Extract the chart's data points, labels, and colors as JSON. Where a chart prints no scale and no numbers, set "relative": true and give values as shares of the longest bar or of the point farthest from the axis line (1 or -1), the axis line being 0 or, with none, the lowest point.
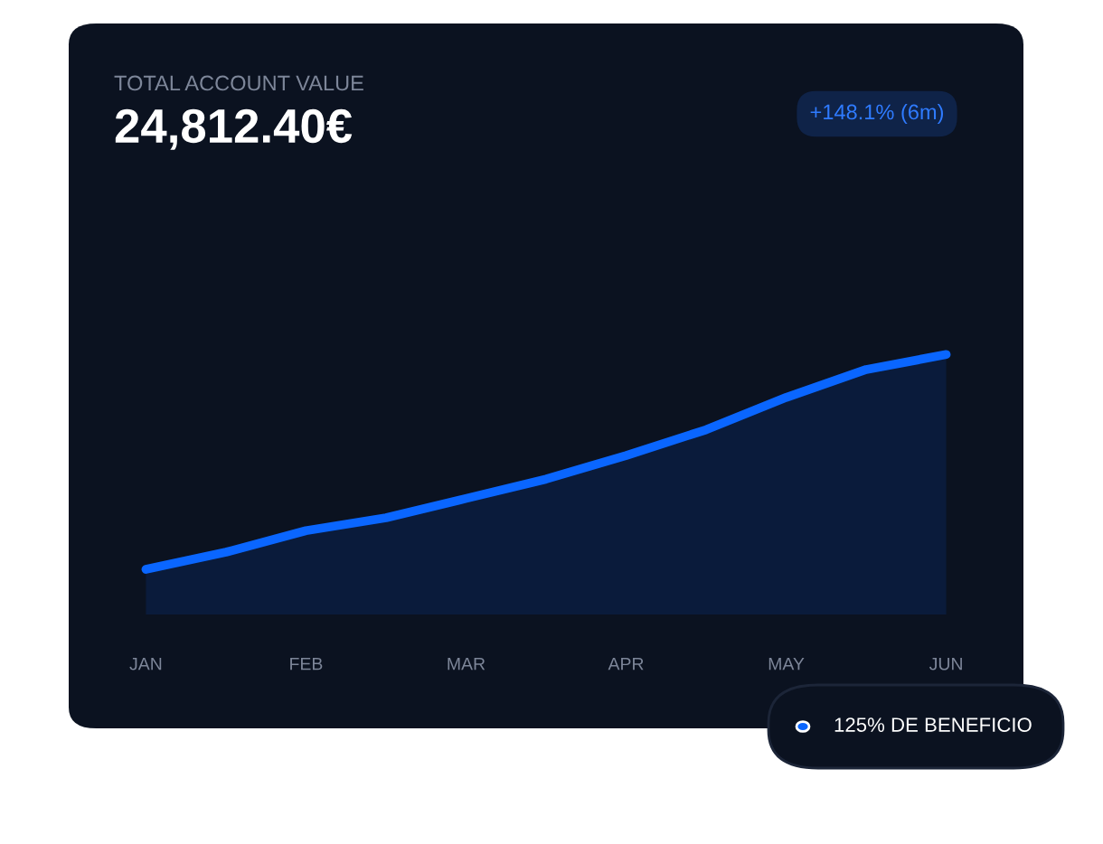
{
  "chart_data": {
    "type": "area",
    "title": "TOTAL ACCOUNT VALUE",
    "subtitle": "24,812.40€",
    "relative": true,
    "categories": [
      "JAN",
      null,
      "FEB",
      null,
      "MAR",
      null,
      "APR",
      null,
      "MAY",
      null,
      "JUN"
    ],
    "series": [
      {
        "color": "#0a66ff",
        "values": [
          0,
          0.08,
          0.18,
          0.24,
          0.33,
          0.42,
          0.53,
          0.65,
          0.8,
          0.93,
          1
        ]
      }
    ],
    "annotations": [
      "+148.1% (6m)",
      "125% DE BENEFICIO"
    ],
    "grid": false
  }
}
